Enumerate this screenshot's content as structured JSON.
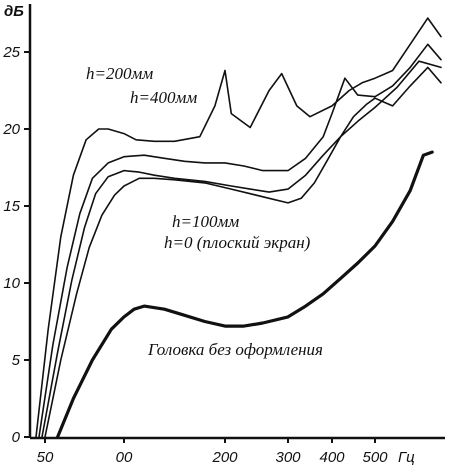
{
  "chart_data": {
    "type": "line",
    "ylabel": "дБ",
    "xlabel": "Гц",
    "ylim": [
      0,
      27
    ],
    "y_ticks": [
      "0",
      "5",
      "10",
      "15",
      "20",
      "25"
    ],
    "x_ticks": [
      "50",
      "00",
      "200",
      "300",
      "400",
      "500"
    ],
    "x_unit_label": "Гц",
    "grid": false,
    "series": [
      {
        "name": "h=200мм",
        "x": [
          44,
          52,
          60,
          68,
          76,
          84,
          90,
          100,
          112,
          130,
          150,
          175,
          190,
          200,
          210,
          240,
          270,
          290,
          320,
          350,
          400,
          440,
          470,
          500,
          540,
          580,
          620,
          650
        ],
        "y": [
          0,
          7,
          13,
          17,
          19.3,
          20,
          20,
          19.7,
          19.3,
          19.2,
          19.2,
          19.5,
          21.5,
          23.8,
          21,
          20.1,
          22.5,
          23.6,
          21.5,
          20.8,
          21.5,
          22.5,
          23,
          23.3,
          23.8,
          25.5,
          27.2,
          26
        ]
      },
      {
        "name": "h=400мм",
        "x": [
          46,
          55,
          64,
          72,
          80,
          90,
          100,
          120,
          140,
          160,
          180,
          200,
          230,
          260,
          300,
          340,
          380,
          400,
          430,
          460,
          500,
          540,
          580,
          620,
          650
        ],
        "y": [
          0,
          6,
          11,
          14.5,
          16.8,
          17.8,
          18.2,
          18.3,
          18.1,
          17.9,
          17.8,
          17.8,
          17.6,
          17.3,
          17.3,
          18.1,
          19.5,
          21,
          23.3,
          22.2,
          22.1,
          22.8,
          24,
          25.5,
          24.5
        ]
      },
      {
        "name": "h=100мм",
        "x": [
          48,
          58,
          67,
          75,
          82,
          90,
          100,
          115,
          130,
          150,
          180,
          210,
          240,
          270,
          300,
          340,
          380,
          420,
          460,
          500,
          550,
          600,
          650
        ],
        "y": [
          0,
          5.5,
          10.2,
          13.6,
          15.8,
          16.9,
          17.3,
          17.2,
          17,
          16.8,
          16.6,
          16.3,
          16.1,
          15.9,
          16.1,
          17,
          18.3,
          19.5,
          20.5,
          21.4,
          22.7,
          24.4,
          24
        ]
      },
      {
        "name": "h=0 (плоский экран)",
        "x": [
          50,
          60,
          70,
          78,
          86,
          94,
          100,
          115,
          130,
          150,
          180,
          210,
          240,
          270,
          300,
          330,
          360,
          390,
          420,
          450,
          480,
          500,
          540,
          580,
          620,
          650
        ],
        "y": [
          0,
          5,
          9.3,
          12.3,
          14.4,
          15.7,
          16.3,
          16.8,
          16.8,
          16.7,
          16.5,
          16.1,
          15.8,
          15.5,
          15.2,
          15.5,
          16.5,
          18,
          19.5,
          20.8,
          21.6,
          22,
          21.5,
          22.8,
          24,
          23
        ]
      },
      {
        "name": "Головка без оформления",
        "x": [
          58,
          68,
          80,
          92,
          100,
          110,
          120,
          140,
          160,
          180,
          200,
          230,
          260,
          300,
          340,
          380,
          420,
          460,
          500,
          540,
          580,
          610,
          630
        ],
        "y": [
          0,
          2.5,
          5,
          7,
          7.8,
          8.3,
          8.5,
          8.3,
          7.9,
          7.5,
          7.2,
          7.2,
          7.4,
          7.8,
          8.5,
          9.3,
          10.3,
          11.3,
          12.4,
          14,
          16,
          18.3,
          18.5
        ]
      }
    ],
    "labels": {
      "h200": "h=200мм",
      "h400": "h=400мм",
      "h100": "h=100мм",
      "h0": "h=0 (плоский экран)",
      "bare": "Головка без оформления"
    }
  }
}
